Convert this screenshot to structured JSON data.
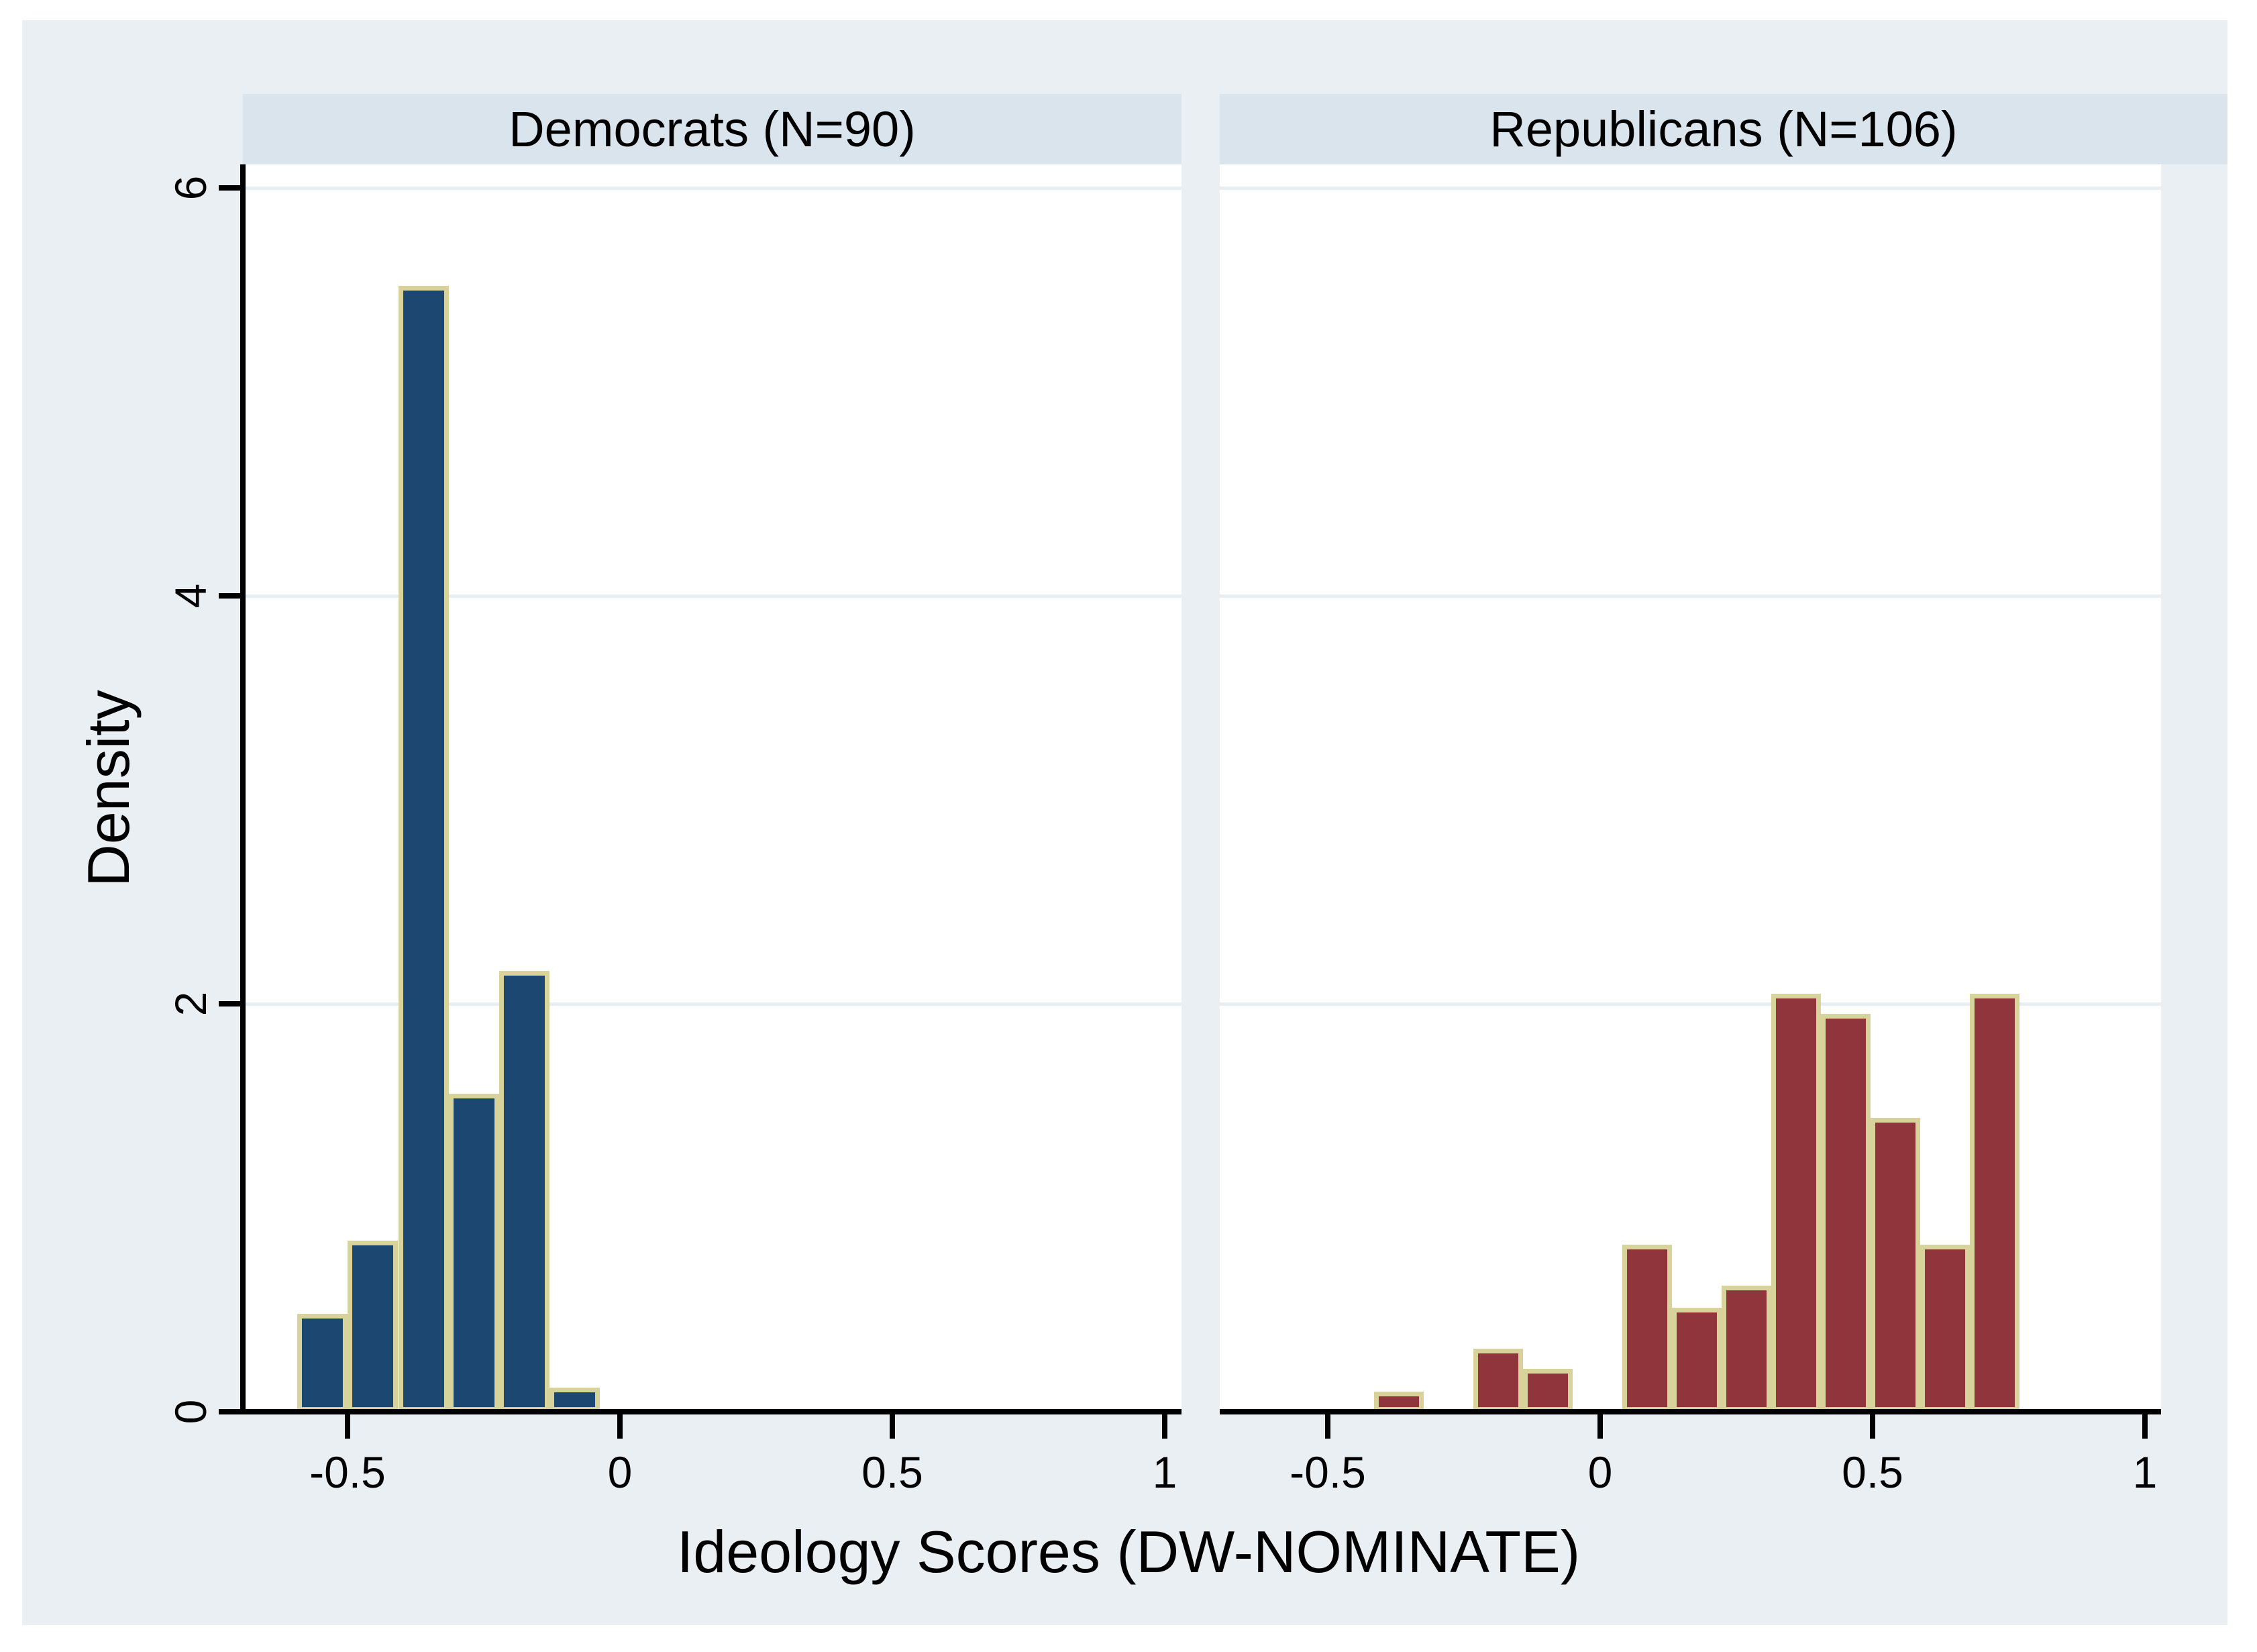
{
  "figure": {
    "background": "#e9eff3",
    "panel_background": "#ffffff",
    "title_band_background": "#dae4ec",
    "gridline_color": "#e7eff4",
    "axis_color": "#000000",
    "text_color": "#000000"
  },
  "chart_data": {
    "type": "bar",
    "subtype": "histogram, two panels by party",
    "xlabel": "Ideology Scores (DW-NOMINATE)",
    "ylabel": "Density",
    "x_ticks": [
      -0.5,
      0,
      0.5,
      1
    ],
    "x_tick_labels": [
      "-0.5",
      "0",
      "0.5",
      "1"
    ],
    "y_ticks": [
      0,
      2,
      4,
      6
    ],
    "y_tick_labels": [
      "0",
      "2",
      "4",
      "6"
    ],
    "xlim": [
      -0.69,
      1.03
    ],
    "ylim": [
      0,
      6.1
    ],
    "grid": "horizontal gridlines at y=2,4,6 on white panels",
    "legend": "none",
    "bar_outline_color": "#d8d29b",
    "panels": [
      {
        "title": "Democrats (N=90)",
        "n": 90,
        "bar_color": "#1b4771",
        "bin_start": -0.592,
        "bin_width": 0.0925,
        "densities": [
          0.48,
          0.84,
          5.52,
          1.56,
          2.16,
          0.12
        ]
      },
      {
        "title": "Republicans (N=106)",
        "n": 106,
        "bar_color": "#90353c",
        "bin_start": -0.415,
        "bin_width": 0.0911,
        "densities": [
          0.1,
          0,
          0.31,
          0.21,
          0,
          0.82,
          0.51,
          0.62,
          2.05,
          1.95,
          1.44,
          0.82,
          2.05
        ]
      }
    ]
  }
}
